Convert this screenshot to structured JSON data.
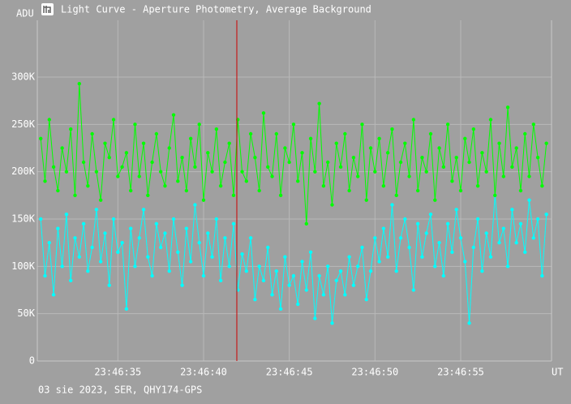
{
  "chart_data": {
    "type": "line",
    "title": "Light Curve - Aperture Photometry, Average Background",
    "subtitle": "03 sie 2023, SER, QHY174-GPS",
    "y_label": "ADU",
    "x_label": "UT",
    "xlim": [
      30.3,
      60.3
    ],
    "xticks": [
      {
        "value": 35,
        "label": "23:46:35"
      },
      {
        "value": 40,
        "label": "23:46:40"
      },
      {
        "value": 45,
        "label": "23:46:45"
      },
      {
        "value": 50,
        "label": "23:46:50"
      },
      {
        "value": 55,
        "label": "23:46:55"
      }
    ],
    "ylim": [
      0,
      360000
    ],
    "yticks": [
      0,
      {
        "value": 50000,
        "label": "50K"
      },
      {
        "value": 100000,
        "label": "100K"
      },
      {
        "value": 150000,
        "label": "150K"
      },
      {
        "value": 200000,
        "label": "200K"
      },
      {
        "value": 250000,
        "label": "250K"
      },
      {
        "value": 300000,
        "label": "300K"
      }
    ],
    "grid": true,
    "cursor_x": 41.94,
    "cursor_color": "#cc0000",
    "x": [
      30.5,
      30.75,
      31,
      31.25,
      31.5,
      31.75,
      32,
      32.25,
      32.5,
      32.75,
      33,
      33.25,
      33.5,
      33.75,
      34,
      34.25,
      34.5,
      34.75,
      35,
      35.25,
      35.5,
      35.75,
      36,
      36.25,
      36.5,
      36.75,
      37,
      37.25,
      37.5,
      37.75,
      38,
      38.25,
      38.5,
      38.75,
      39,
      39.25,
      39.5,
      39.75,
      40,
      40.25,
      40.5,
      40.75,
      41,
      41.25,
      41.5,
      41.75,
      42,
      42.25,
      42.5,
      42.75,
      43,
      43.25,
      43.5,
      43.75,
      44,
      44.25,
      44.5,
      44.75,
      45,
      45.25,
      45.5,
      45.75,
      46,
      46.25,
      46.5,
      46.75,
      47,
      47.25,
      47.5,
      47.75,
      48,
      48.25,
      48.5,
      48.75,
      49,
      49.25,
      49.5,
      49.75,
      50,
      50.25,
      50.5,
      50.75,
      51,
      51.25,
      51.5,
      51.75,
      52,
      52.25,
      52.5,
      52.75,
      53,
      53.25,
      53.5,
      53.75,
      54,
      54.25,
      54.5,
      54.75,
      55,
      55.25,
      55.5,
      55.75,
      56,
      56.25,
      56.5,
      56.75,
      57,
      57.25,
      57.5,
      57.75,
      58,
      58.25,
      58.5,
      58.75,
      59,
      59.25,
      59.5,
      59.75,
      60
    ],
    "series": [
      {
        "color": "#00ffff",
        "values": [
          150000,
          90000,
          125000,
          70000,
          140000,
          100000,
          155000,
          85000,
          130000,
          110000,
          145000,
          95000,
          120000,
          160000,
          105000,
          135000,
          80000,
          150000,
          115000,
          125000,
          55000,
          140000,
          100000,
          130000,
          160000,
          110000,
          90000,
          145000,
          120000,
          135000,
          95000,
          150000,
          115000,
          80000,
          140000,
          105000,
          165000,
          125000,
          90000,
          135000,
          110000,
          150000,
          85000,
          130000,
          100000,
          145000,
          75000,
          113000,
          95000,
          130000,
          65000,
          100000,
          85000,
          120000,
          70000,
          95000,
          55000,
          110000,
          80000,
          90000,
          60000,
          105000,
          75000,
          115000,
          45000,
          90000,
          70000,
          100000,
          40000,
          85000,
          95000,
          70000,
          110000,
          80000,
          100000,
          120000,
          65000,
          95000,
          130000,
          105000,
          140000,
          110000,
          165000,
          95000,
          130000,
          150000,
          120000,
          75000,
          145000,
          110000,
          135000,
          155000,
          100000,
          125000,
          90000,
          145000,
          115000,
          160000,
          130000,
          105000,
          40000,
          120000,
          150000,
          95000,
          135000,
          110000,
          175000,
          125000,
          140000,
          100000,
          160000,
          125000,
          145000,
          115000,
          170000,
          130000,
          150000,
          90000,
          155000
        ]
      },
      {
        "color": "#00ff00",
        "values": [
          235000,
          190000,
          255000,
          205000,
          180000,
          225000,
          200000,
          245000,
          175000,
          293000,
          210000,
          185000,
          240000,
          200000,
          170000,
          230000,
          215000,
          255000,
          195000,
          205000,
          220000,
          180000,
          250000,
          195000,
          230000,
          175000,
          210000,
          240000,
          200000,
          185000,
          225000,
          260000,
          190000,
          215000,
          180000,
          235000,
          205000,
          250000,
          170000,
          220000,
          200000,
          245000,
          185000,
          210000,
          230000,
          175000,
          255000,
          200000,
          190000,
          240000,
          215000,
          180000,
          262000,
          205000,
          195000,
          240000,
          175000,
          225000,
          210000,
          250000,
          190000,
          220000,
          145000,
          235000,
          200000,
          272000,
          185000,
          210000,
          165000,
          230000,
          205000,
          240000,
          180000,
          215000,
          195000,
          250000,
          170000,
          225000,
          200000,
          235000,
          185000,
          220000,
          245000,
          175000,
          210000,
          230000,
          195000,
          255000,
          180000,
          215000,
          200000,
          240000,
          170000,
          225000,
          205000,
          250000,
          190000,
          215000,
          180000,
          235000,
          210000,
          245000,
          185000,
          220000,
          200000,
          255000,
          175000,
          230000,
          195000,
          268000,
          205000,
          225000,
          180000,
          240000,
          195000,
          250000,
          215000,
          185000,
          230000
        ]
      }
    ]
  }
}
